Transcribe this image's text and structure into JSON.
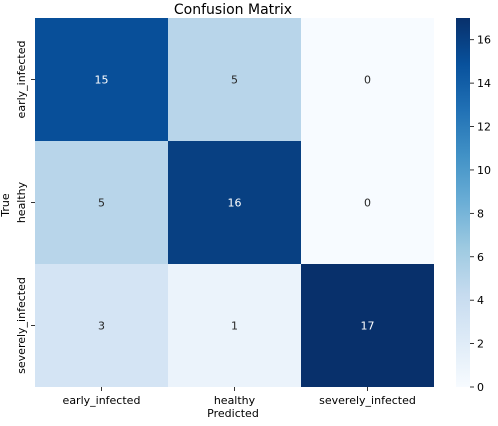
{
  "chart_data": {
    "type": "heatmap",
    "title": "Confusion Matrix",
    "xlabel": "Predicted",
    "ylabel": "True",
    "x_categories": [
      "early_infected",
      "healthy",
      "severely_infected"
    ],
    "y_categories": [
      "early_infected",
      "healthy",
      "severely_infected"
    ],
    "values": [
      [
        15,
        5,
        0
      ],
      [
        5,
        16,
        0
      ],
      [
        3,
        1,
        17
      ]
    ],
    "colormap": "Blues",
    "colorbar": {
      "range": [
        0,
        17
      ],
      "ticks": [
        0,
        2,
        4,
        6,
        8,
        10,
        12,
        14,
        16
      ]
    },
    "annotated": true
  }
}
